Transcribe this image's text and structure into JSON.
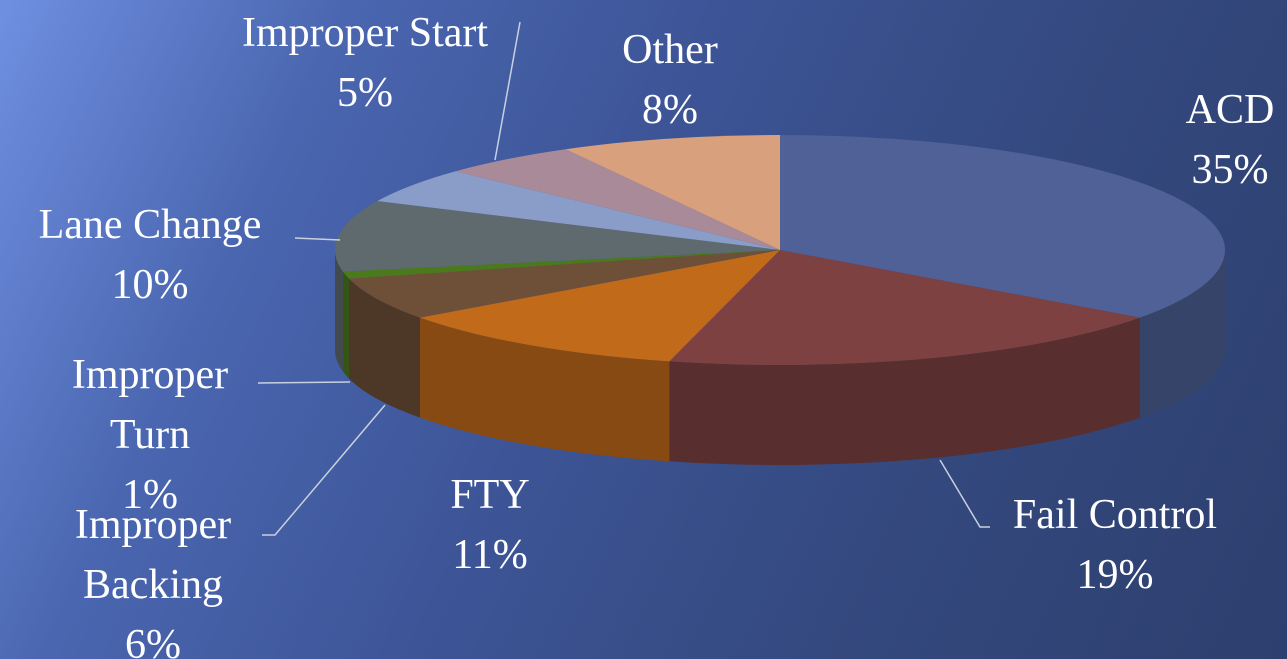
{
  "chart_data": {
    "type": "pie3d",
    "categories": [
      "ACD",
      "Fail Control",
      "FTY",
      "Improper Backing",
      "Improper Turn",
      "Lane Change",
      null,
      "Improper Start",
      "Other"
    ],
    "values": [
      35,
      19,
      11,
      6,
      1,
      10,
      5,
      5,
      8
    ],
    "value_labels": [
      "35%",
      "19%",
      "11%",
      "6%",
      "1%",
      "10%",
      null,
      "5%",
      "8%"
    ],
    "colors": [
      "#4f6196",
      "#7e4142",
      "#c06a1a",
      "#6e5038",
      "#4a7a1c",
      "#5e6a6e",
      "#8a9cc8",
      "#a98a98",
      "#d9a07e"
    ]
  }
}
